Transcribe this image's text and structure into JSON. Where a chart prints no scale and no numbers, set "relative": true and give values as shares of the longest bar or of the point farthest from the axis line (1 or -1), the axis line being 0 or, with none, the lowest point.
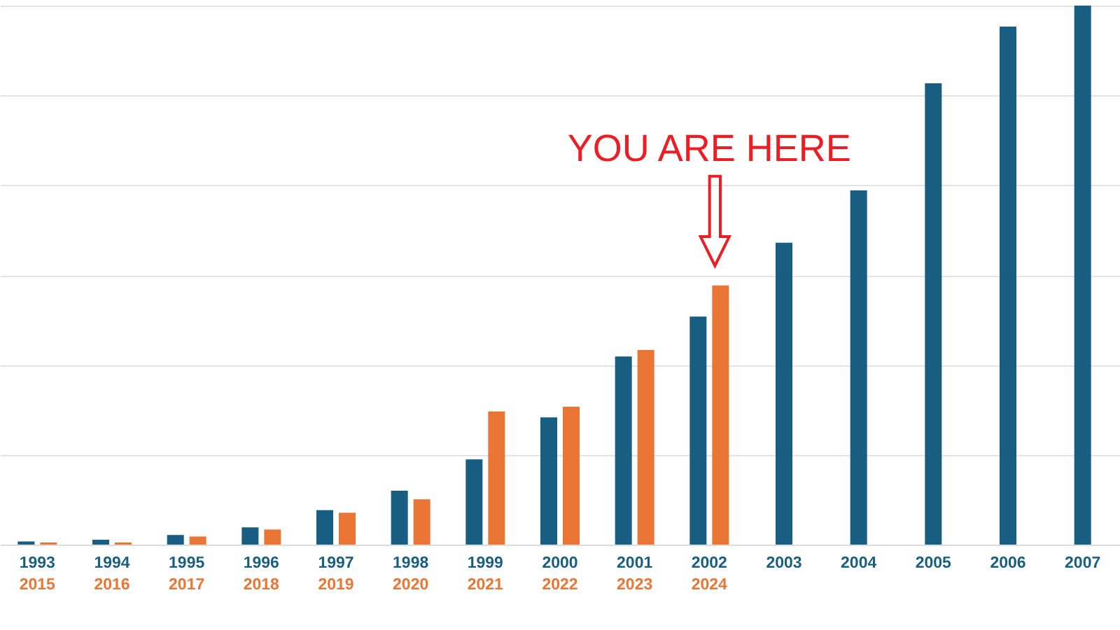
{
  "chart_data": {
    "type": "bar",
    "relative": true,
    "grid": "y",
    "categories": [
      "1993",
      "1994",
      "1995",
      "1996",
      "1997",
      "1998",
      "1999",
      "2000",
      "2001",
      "2002",
      "2003",
      "2004",
      "2005",
      "2006",
      "2007"
    ],
    "series": [
      {
        "color": "#175e82",
        "values": [
          0.006,
          0.009,
          0.018,
          0.032,
          0.064,
          0.1,
          0.158,
          0.236,
          0.349,
          0.423,
          0.56,
          0.657,
          0.856,
          0.961,
          1
        ]
      },
      {
        "color": "#ea7534",
        "values": [
          0.004,
          0.004,
          0.015,
          0.028,
          0.059,
          0.084,
          0.247,
          0.256,
          0.361,
          0.481,
          null,
          null,
          null,
          null,
          null
        ]
      }
    ],
    "annotations": [
      "YOU ARE HERE",
      "2015",
      "2016",
      "2017",
      "2018",
      "2019",
      "2020",
      "2021",
      "2022",
      "2023",
      "2024"
    ]
  }
}
